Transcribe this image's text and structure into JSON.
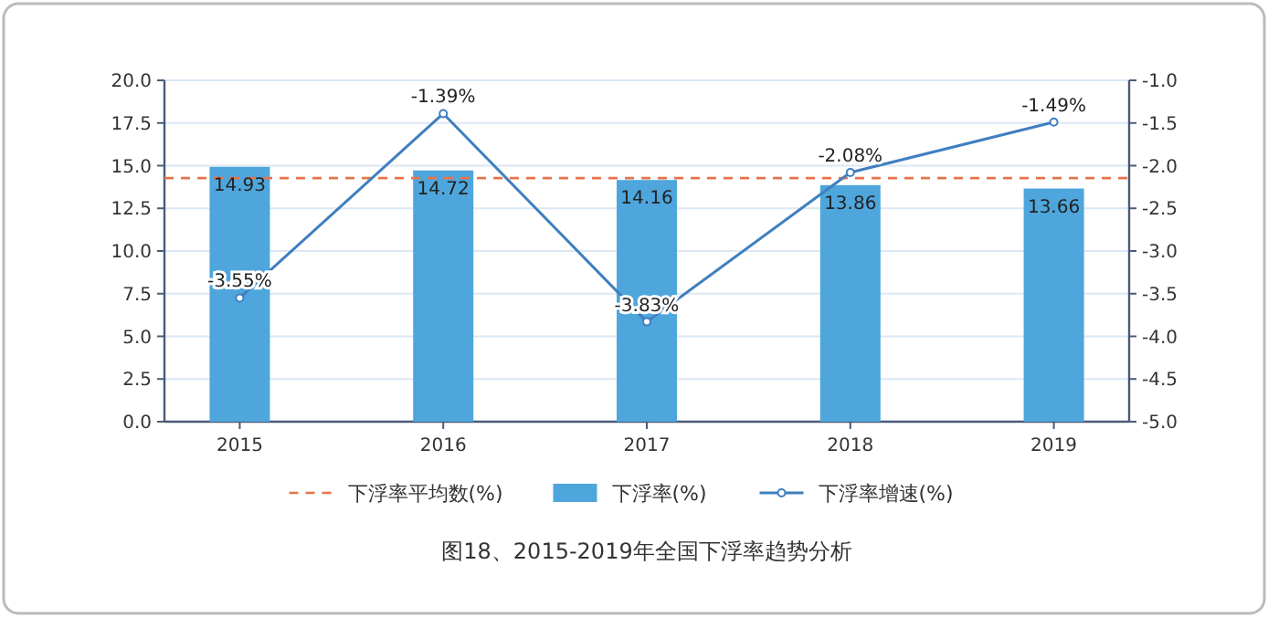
{
  "chart_data": {
    "type": "bar",
    "title": "图18、2015-2019年全国下浮率趋势分析",
    "categories": [
      "2015",
      "2016",
      "2017",
      "2018",
      "2019"
    ],
    "series": [
      {
        "name": "下浮率(%)",
        "color": "#4ea6dc",
        "values": [
          14.93,
          14.72,
          14.16,
          13.86,
          13.66
        ],
        "value_labels": [
          "14.93",
          "14.72",
          "14.16",
          "13.86",
          "13.66"
        ]
      },
      {
        "name": "下浮率增速(%)",
        "type": "line",
        "axis": "y2",
        "color": "#3f7fbf",
        "marker": "circle",
        "values": [
          -3.55,
          -1.39,
          -3.83,
          -2.08,
          -1.49
        ],
        "value_labels": [
          "-3.55%",
          "-1.39%",
          "-3.83%",
          "-2.08%",
          "-1.49%"
        ]
      }
    ],
    "ref_lines": [
      {
        "axis": "y",
        "value": 14.27,
        "label": "下浮率平均数(%)",
        "color": "#e8734a",
        "line_style": "dashed"
      }
    ],
    "ylim": [
      0,
      20
    ],
    "yticks": [
      {
        "value": 0,
        "label": "0.0"
      },
      {
        "value": 2.5,
        "label": "2.5"
      },
      {
        "value": 5,
        "label": "5.0"
      },
      {
        "value": 7.5,
        "label": "7.5"
      },
      {
        "value": 10,
        "label": "10.0"
      },
      {
        "value": 12.5,
        "label": "12.5"
      },
      {
        "value": 15,
        "label": "15.0"
      },
      {
        "value": 17.5,
        "label": "17.5"
      },
      {
        "value": 20,
        "label": "20.0"
      }
    ],
    "y2lim": [
      -5,
      -1
    ],
    "y2ticks": [
      {
        "value": -5,
        "label": "-5.0"
      },
      {
        "value": -4.5,
        "label": "-4.5"
      },
      {
        "value": -4,
        "label": "-4.0"
      },
      {
        "value": -3.5,
        "label": "-3.5"
      },
      {
        "value": -3,
        "label": "-3.0"
      },
      {
        "value": -2.5,
        "label": "-2.5"
      },
      {
        "value": -2,
        "label": "-2.0"
      },
      {
        "value": -1.5,
        "label": "-1.5"
      },
      {
        "value": -1,
        "label": "-1.0"
      }
    ],
    "grid": "y",
    "legend": "bottom"
  }
}
